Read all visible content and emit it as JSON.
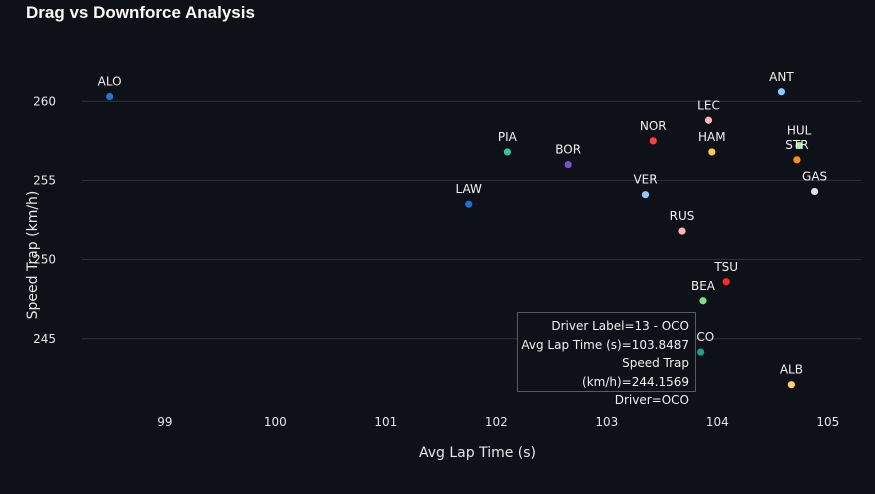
{
  "chart_data": {
    "type": "scatter",
    "title": "Drag vs Downforce Analysis",
    "xlabel": "Avg Lap Time (s)",
    "ylabel": "Speed Trap (km/h)",
    "xlim": [
      98.25,
      105.3
    ],
    "ylim": [
      240.5,
      264.5
    ],
    "xticks": [
      99,
      100,
      101,
      102,
      103,
      104,
      105
    ],
    "yticks": [
      245,
      250,
      255,
      260
    ],
    "grid": "horizontal",
    "points": [
      {
        "label": "ALO",
        "x": 98.5,
        "y": 260.3,
        "color": "#1f77d4"
      },
      {
        "label": "LAW",
        "x": 101.75,
        "y": 253.5,
        "color": "#1f6fd6"
      },
      {
        "label": "PIA",
        "x": 102.1,
        "y": 256.8,
        "color": "#2ec4a0"
      },
      {
        "label": "BOR",
        "x": 102.65,
        "y": 256.0,
        "color": "#7a4fd0"
      },
      {
        "label": "NOR",
        "x": 103.42,
        "y": 257.5,
        "color": "#ff4040"
      },
      {
        "label": "VER",
        "x": 103.35,
        "y": 254.1,
        "color": "#8ecaff"
      },
      {
        "label": "RUS",
        "x": 103.68,
        "y": 251.8,
        "color": "#ffb3b8"
      },
      {
        "label": "LEC",
        "x": 103.92,
        "y": 258.8,
        "color": "#ffb3b8"
      },
      {
        "label": "HAM",
        "x": 103.95,
        "y": 256.8,
        "color": "#ffc94d"
      },
      {
        "label": "TSU",
        "x": 104.08,
        "y": 248.6,
        "color": "#ff2b2b"
      },
      {
        "label": "BEA",
        "x": 103.87,
        "y": 247.4,
        "color": "#7ee07e"
      },
      {
        "label": "OCO",
        "x": 103.8487,
        "y": 244.1569,
        "color": "#1f9e89"
      },
      {
        "label": "ANT",
        "x": 104.58,
        "y": 260.6,
        "color": "#8ecaff"
      },
      {
        "label": "HUL",
        "x": 104.74,
        "y": 257.2,
        "color": "#a8f0a8"
      },
      {
        "label": "STR",
        "x": 104.72,
        "y": 256.3,
        "color": "#ff8c1a"
      },
      {
        "label": "GAS",
        "x": 104.88,
        "y": 254.3,
        "color": "#e0e0e0"
      },
      {
        "label": "ALB",
        "x": 104.67,
        "y": 242.1,
        "color": "#ffd060"
      }
    ]
  },
  "tooltip": {
    "line1": "Driver Label=13 - OCO",
    "line2": "Avg Lap Time (s)=103.8487",
    "line3": "Speed Trap (km/h)=244.1569",
    "line4": "Driver=OCO"
  }
}
